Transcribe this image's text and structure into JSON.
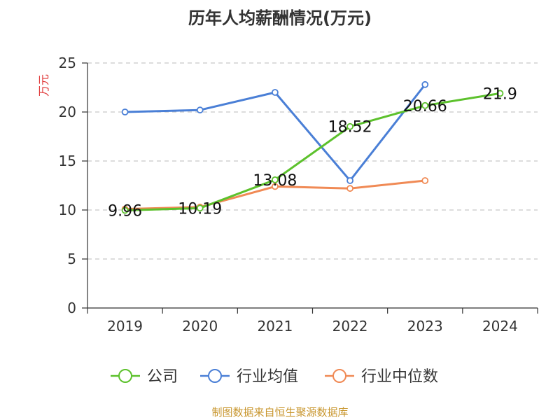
{
  "chart_data": {
    "type": "line",
    "title": "历年人均薪酬情况(万元)",
    "ylabel": "万元",
    "xlabel": "",
    "categories": [
      "2019",
      "2020",
      "2021",
      "2022",
      "2023",
      "2024"
    ],
    "ylim": [
      0,
      25
    ],
    "yticks": [
      0,
      5,
      10,
      15,
      20,
      25
    ],
    "grid": true,
    "legend_position": "bottom",
    "series": [
      {
        "name": "公司",
        "color": "#5cc12c",
        "values": [
          9.96,
          10.19,
          13.08,
          18.52,
          20.66,
          21.9
        ],
        "labels": [
          "9.96",
          "10.19",
          "13.08",
          "18.52",
          "20.66",
          "21.9"
        ]
      },
      {
        "name": "行业均值",
        "color": "#4a7fd6",
        "values": [
          20.0,
          20.2,
          22.0,
          13.0,
          22.8,
          null
        ]
      },
      {
        "name": "行业中位数",
        "color": "#f08a55",
        "values": [
          10.1,
          10.3,
          12.4,
          12.2,
          13.0,
          null
        ]
      }
    ]
  },
  "source": "制图数据来自恒生聚源数据库",
  "ylabel_color": "#e03a3a"
}
